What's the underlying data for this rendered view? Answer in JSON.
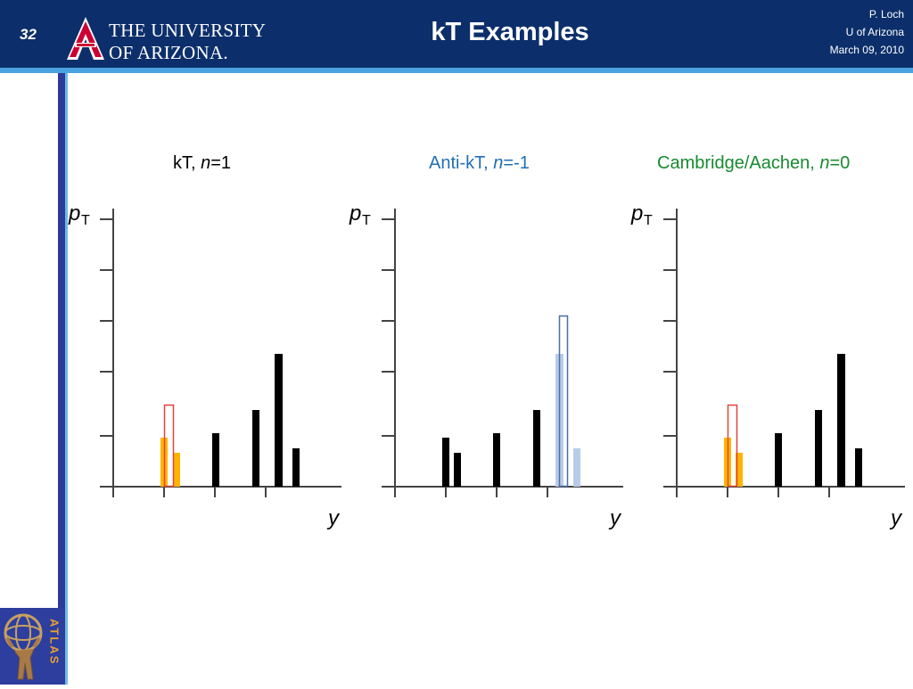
{
  "header": {
    "slide_number": "32",
    "university_line1": "THE UNIVERSITY",
    "university_line2": "OF ARIZONA.",
    "title": "kT Examples",
    "author": "P. Loch",
    "affiliation": "U of Arizona",
    "date": "March 09, 2010"
  },
  "footer": {
    "atlas_label": "ATLAS"
  },
  "colors": {
    "header_bg": "#0c2f6b",
    "accent_stripe": "#4aa3df",
    "kt_label": "#000000",
    "antikt_label": "#1f6fb5",
    "ca_label": "#178a2e",
    "orange_bar": "#ffb400",
    "red_outline": "#e0453a",
    "blue_outline": "#4a6fa8",
    "light_blue_bar": "#b9cce6"
  },
  "panels": [
    {
      "label_prefix": "kT, ",
      "label_var": "n",
      "label_suffix": "=1",
      "ylabel_main": "p",
      "ylabel_sub": "T",
      "xlabel": "y"
    },
    {
      "label_prefix": "Anti-kT, ",
      "label_var": "n",
      "label_suffix": "=-1",
      "ylabel_main": "p",
      "ylabel_sub": "T",
      "xlabel": "y"
    },
    {
      "label_prefix": "Cambridge/Aachen, ",
      "label_var": "n",
      "label_suffix": "=0",
      "ylabel_main": "p",
      "ylabel_sub": "T",
      "xlabel": "y"
    }
  ]
}
